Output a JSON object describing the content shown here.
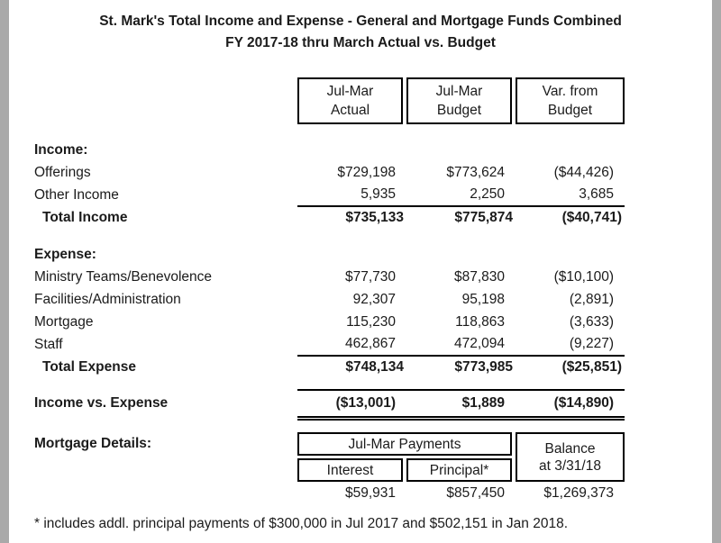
{
  "title": {
    "line1": "St. Mark's Total Income and Expense - General and Mortgage Funds Combined",
    "line2": "FY 2017-18 thru March Actual vs. Budget"
  },
  "columns": [
    {
      "l1": "Jul-Mar",
      "l2": "Actual"
    },
    {
      "l1": "Jul-Mar",
      "l2": "Budget"
    },
    {
      "l1": "Var. from",
      "l2": "Budget"
    }
  ],
  "income": {
    "header": "Income:",
    "rows": [
      {
        "label": "Offerings",
        "actual": "$729,198",
        "budget": "$773,624",
        "variance": "($44,426)"
      },
      {
        "label": "Other Income",
        "actual": "5,935",
        "budget": "2,250",
        "variance": "3,685"
      }
    ],
    "total": {
      "label": "Total Income",
      "actual": "$735,133",
      "budget": "$775,874",
      "variance": "($40,741)"
    }
  },
  "expense": {
    "header": "Expense:",
    "rows": [
      {
        "label": "Ministry Teams/Benevolence",
        "actual": "$77,730",
        "budget": "$87,830",
        "variance": "($10,100)"
      },
      {
        "label": "Facilities/Administration",
        "actual": "92,307",
        "budget": "95,198",
        "variance": "(2,891)"
      },
      {
        "label": "Mortgage",
        "actual": "115,230",
        "budget": "118,863",
        "variance": "(3,633)"
      },
      {
        "label": "Staff",
        "actual": "462,867",
        "budget": "472,094",
        "variance": "(9,227)"
      }
    ],
    "total": {
      "label": "Total Expense",
      "actual": "$748,134",
      "budget": "$773,985",
      "variance": "($25,851)"
    }
  },
  "net": {
    "label": "Income vs. Expense",
    "actual": "($13,001)",
    "budget": "$1,889",
    "variance": "($14,890)"
  },
  "mortgage": {
    "label": "Mortgage Details:",
    "payments_header": "Jul-Mar Payments",
    "balance_line1": "Balance",
    "balance_line2": "at 3/31/18",
    "interest_header": "Interest",
    "principal_header": "Principal*",
    "interest": "$59,931",
    "principal": "$857,450",
    "balance": "$1,269,373"
  },
  "footnote": "* includes addl. principal payments of $300,000 in Jul 2017 and $502,151 in Jan 2018."
}
